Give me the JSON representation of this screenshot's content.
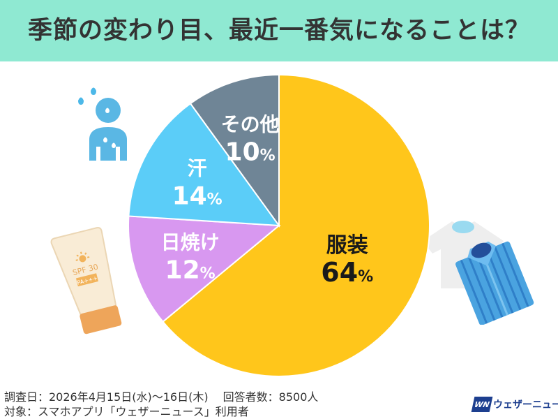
{
  "title": "季節の変わり目、最近一番気になることは？",
  "colors": {
    "header_bg": "#8fe9d2",
    "slice_clothing": "#ffc61b",
    "slice_sunburn": "#d898f0",
    "slice_sweat": "#5bcdf8",
    "slice_other": "#6f8596",
    "logo": "#1d3f8f"
  },
  "chart_data": {
    "type": "pie",
    "start": "12 o'clock, clockwise",
    "slices": [
      {
        "label": "服装",
        "value": 64,
        "display": "64",
        "unit": "%",
        "color": "#ffc61b",
        "text_color": "#1a1a1a"
      },
      {
        "label": "日焼け",
        "value": 12,
        "display": "12",
        "unit": "%",
        "color": "#d898f0",
        "text_color": "#ffffff"
      },
      {
        "label": "汗",
        "value": 14,
        "display": "14",
        "unit": "%",
        "color": "#5bcdf8",
        "text_color": "#ffffff"
      },
      {
        "label": "その他",
        "value": 10,
        "display": "10",
        "unit": "%",
        "color": "#6f8596",
        "text_color": "#ffffff"
      }
    ]
  },
  "icons": [
    "sweating-person-icon",
    "sunscreen-tube-icon",
    "clothes-icon"
  ],
  "sunscreen": {
    "spf_text": "SPF 30",
    "pa_text": "PA+++"
  },
  "footer": {
    "survey_line": "調査日：2026年4月15日(水)～16日(木)　 回答者数：8500人",
    "target_line": "対象：スマホアプリ「ウェザーニュース」利用者"
  },
  "logo": {
    "mark": "WN",
    "text": "ウェザーニュース"
  }
}
